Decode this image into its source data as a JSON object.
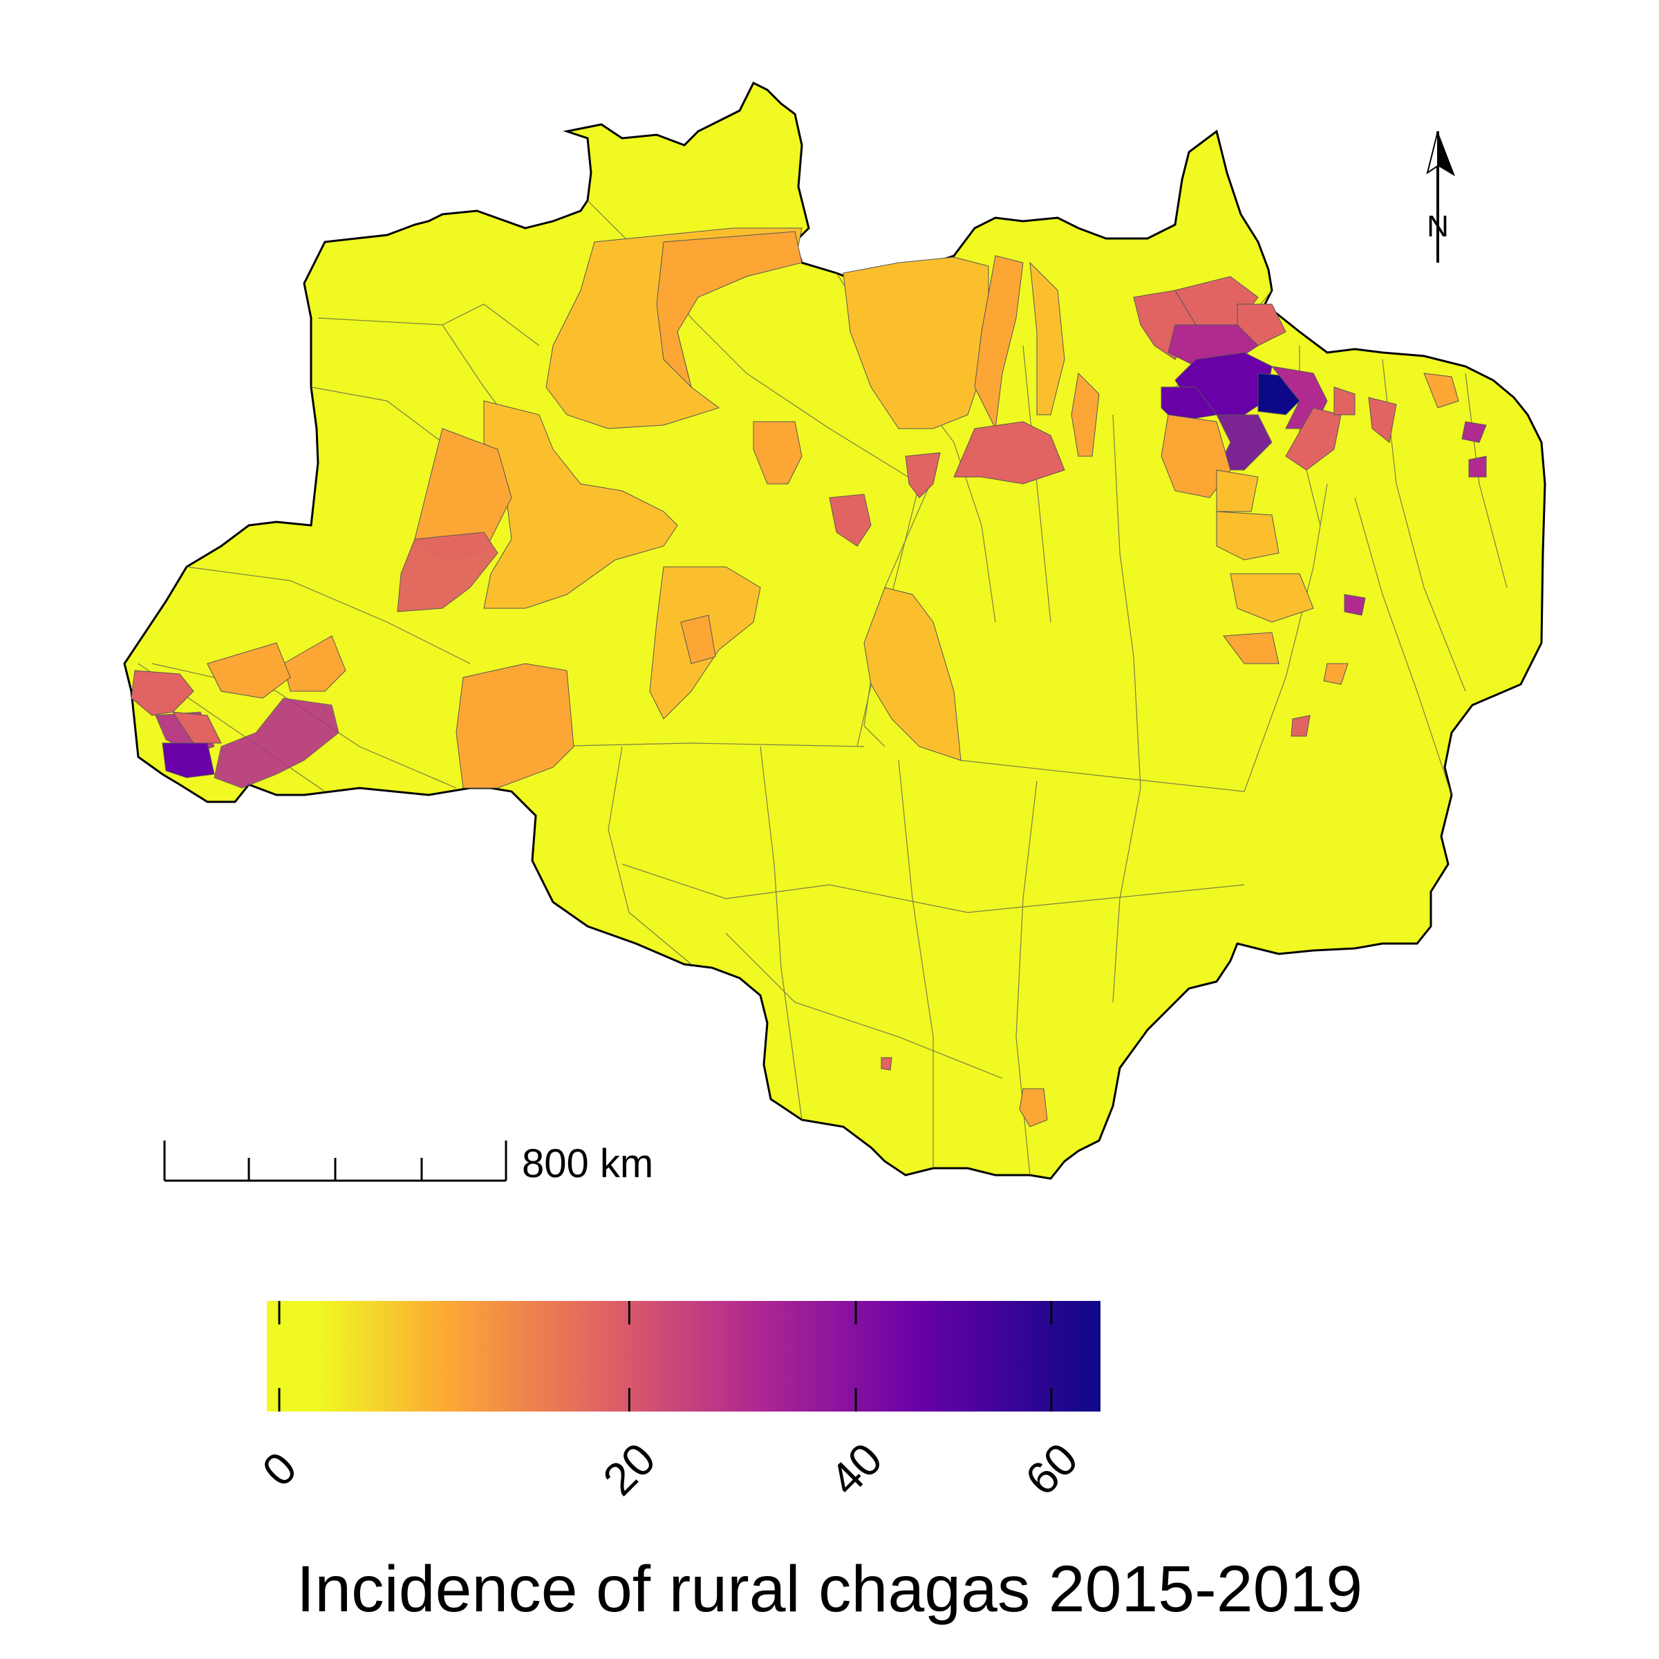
{
  "legend": {
    "title": "Incidence of rural chagas 2015-2019",
    "ticks": [
      {
        "label": "0",
        "value": 0
      },
      {
        "label": "20",
        "value": 20
      },
      {
        "label": "40",
        "value": 40
      },
      {
        "label": "60",
        "value": 60
      }
    ],
    "colors": [
      "#F0F921",
      "#FCA636",
      "#E16462",
      "#B12A90",
      "#6A00A8",
      "#0D0887"
    ]
  },
  "scalebar": {
    "label": "800 km"
  },
  "north_arrow": {
    "label": "N"
  },
  "colors": {
    "low": "#F0F921",
    "orange": "#FCA636",
    "light_orange": "#FBBF2E",
    "salmon": "#E16462",
    "magenta": "#B12A90",
    "purple": "#6A00A8",
    "dark": "#0D0887"
  }
}
